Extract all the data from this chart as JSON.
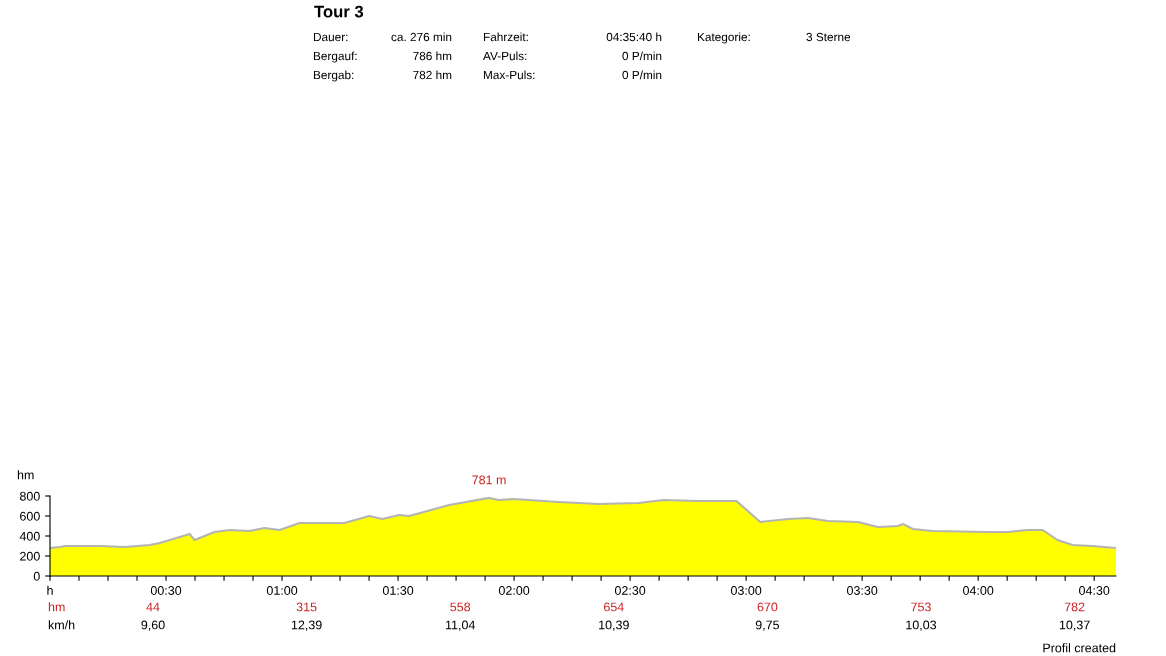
{
  "chart_data": {
    "type": "area",
    "title": "Tour 3",
    "ylabel": "hm",
    "x": [
      0,
      0.043,
      0.064,
      0.215,
      0.322,
      0.43,
      0.473,
      0.516,
      0.602,
      0.623,
      0.709,
      0.774,
      0.86,
      0.924,
      0.989,
      1.075,
      1.268,
      1.376,
      1.432,
      1.505,
      1.548,
      1.72,
      1.892,
      1.935,
      1.999,
      2.193,
      2.365,
      2.537,
      2.644,
      2.794,
      2.958,
      3.061,
      3.181,
      3.267,
      3.353,
      3.482,
      3.568,
      3.654,
      3.676,
      3.719,
      3.805,
      4.041,
      4.127,
      4.213,
      4.278,
      4.342,
      4.407,
      4.493,
      4.594
    ],
    "series": [
      {
        "color": "#ffff00",
        "values": [
          280,
          290,
          300,
          300,
          290,
          310,
          330,
          360,
          420,
          360,
          440,
          460,
          450,
          480,
          460,
          530,
          530,
          600,
          570,
          610,
          600,
          710,
          781,
          760,
          770,
          740,
          720,
          730,
          760,
          750,
          750,
          540,
          570,
          580,
          550,
          540,
          490,
          500,
          520,
          470,
          450,
          440,
          440,
          460,
          460,
          360,
          310,
          300,
          280
        ]
      }
    ],
    "xlim": [
      0,
      4.594
    ],
    "ylim": [
      0,
      800
    ],
    "yticks": [
      0,
      200,
      400,
      600,
      800
    ],
    "xticks": [
      {
        "value": 0,
        "label": "h"
      },
      {
        "value": 0.125,
        "label": null
      },
      {
        "value": 0.25,
        "label": null
      },
      {
        "value": 0.375,
        "label": null
      },
      {
        "value": 0.5,
        "label": "00:30"
      },
      {
        "value": 0.625,
        "label": null
      },
      {
        "value": 0.75,
        "label": null
      },
      {
        "value": 0.875,
        "label": null
      },
      {
        "value": 1,
        "label": "01:00"
      },
      {
        "value": 1.125,
        "label": null
      },
      {
        "value": 1.25,
        "label": null
      },
      {
        "value": 1.375,
        "label": null
      },
      {
        "value": 1.5,
        "label": "01:30"
      },
      {
        "value": 1.625,
        "label": null
      },
      {
        "value": 1.75,
        "label": null
      },
      {
        "value": 1.875,
        "label": null
      },
      {
        "value": 2,
        "label": "02:00"
      },
      {
        "value": 2.125,
        "label": null
      },
      {
        "value": 2.25,
        "label": null
      },
      {
        "value": 2.375,
        "label": null
      },
      {
        "value": 2.5,
        "label": "02:30"
      },
      {
        "value": 2.625,
        "label": null
      },
      {
        "value": 2.75,
        "label": null
      },
      {
        "value": 2.875,
        "label": null
      },
      {
        "value": 3,
        "label": "03:00"
      },
      {
        "value": 3.125,
        "label": null
      },
      {
        "value": 3.25,
        "label": null
      },
      {
        "value": 3.375,
        "label": null
      },
      {
        "value": 3.5,
        "label": "03:30"
      },
      {
        "value": 3.625,
        "label": null
      },
      {
        "value": 3.75,
        "label": null
      },
      {
        "value": 3.875,
        "label": null
      },
      {
        "value": 4,
        "label": "04:00"
      },
      {
        "value": 4.125,
        "label": null
      },
      {
        "value": 4.25,
        "label": null
      },
      {
        "value": 4.375,
        "label": null
      },
      {
        "value": 4.5,
        "label": "04:30"
      }
    ],
    "grid": false,
    "legend": false,
    "annotations": [
      "Dauer:",
      "ca. 276 min",
      "Fahrzeit:",
      "04:35:40 h",
      "Kategorie:",
      "3 Sterne",
      "Bergauf:",
      "786 hm",
      "AV-Puls:",
      "0 P/min",
      "Bergab:",
      "782 hm",
      "Max-Puls:",
      "0 P/min",
      "hm",
      "44",
      "315",
      "558",
      "654",
      "670",
      "753",
      "782",
      "km/h",
      "9,60",
      "12,39",
      "11,04",
      "10,39",
      "9,75",
      "10,03",
      "10,37",
      {
        "text": "781 m",
        "x": 1.892,
        "y": 781
      },
      "Profil created"
    ]
  }
}
